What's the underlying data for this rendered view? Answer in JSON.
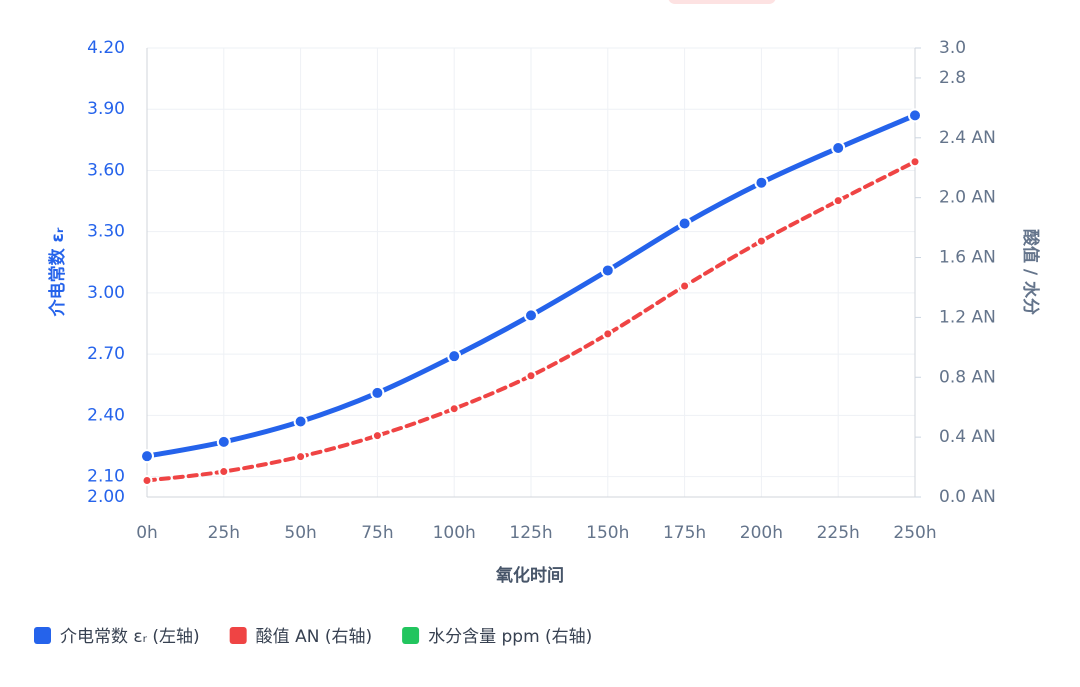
{
  "chart_data": {
    "type": "line",
    "xlabel": "氧化时间",
    "ylabel": "介电常数 εᵣ",
    "y2label": "酸值 / 水分",
    "categories": [
      "0h",
      "25h",
      "50h",
      "75h",
      "100h",
      "125h",
      "150h",
      "175h",
      "200h",
      "225h",
      "250h"
    ],
    "series": [
      {
        "name": "介电常数 εᵣ (左轴)",
        "color": "#2563eb",
        "values": [
          2.2,
          2.27,
          2.37,
          2.51,
          2.69,
          2.89,
          3.11,
          3.34,
          3.54,
          3.71,
          3.87
        ]
      },
      {
        "name": "酸值 AN (右轴)",
        "color": "#ef4444",
        "axis": "y2",
        "dashed": true,
        "values": [
          0.11,
          0.17,
          0.27,
          0.41,
          0.59,
          0.81,
          1.09,
          1.41,
          1.71,
          1.98,
          2.24
        ]
      },
      {
        "name": "水分含量 ppm (右轴)",
        "color": "#22c55e",
        "axis": "y2",
        "values": [
          null,
          null,
          null,
          null,
          null,
          null,
          null,
          null,
          null,
          null,
          null
        ]
      }
    ],
    "ylim": [
      2.0,
      4.2
    ],
    "yticks": [
      {
        "value": 2.0,
        "label": "2.00"
      },
      {
        "value": 2.1,
        "label": "2.10"
      },
      {
        "value": 2.4,
        "label": "2.40"
      },
      {
        "value": 2.7,
        "label": "2.70"
      },
      {
        "value": 3.0,
        "label": "3.00"
      },
      {
        "value": 3.3,
        "label": "3.30"
      },
      {
        "value": 3.6,
        "label": "3.60"
      },
      {
        "value": 3.9,
        "label": "3.90"
      },
      {
        "value": 4.2,
        "label": "4.20"
      }
    ],
    "y2lim": [
      0,
      3.0
    ],
    "y2ticks": [
      {
        "value": 0,
        "label": "0.0 AN"
      },
      {
        "value": 0.4,
        "label": "0.4 AN"
      },
      {
        "value": 0.8,
        "label": "0.8 AN"
      },
      {
        "value": 1.2,
        "label": "1.2 AN"
      },
      {
        "value": 1.6,
        "label": "1.6 AN"
      },
      {
        "value": 2.0,
        "label": "2.0 AN"
      },
      {
        "value": 2.4,
        "label": "2.4 AN"
      },
      2.8,
      {
        "value": 3.0,
        "label": "3.0"
      }
    ],
    "grid": true
  }
}
